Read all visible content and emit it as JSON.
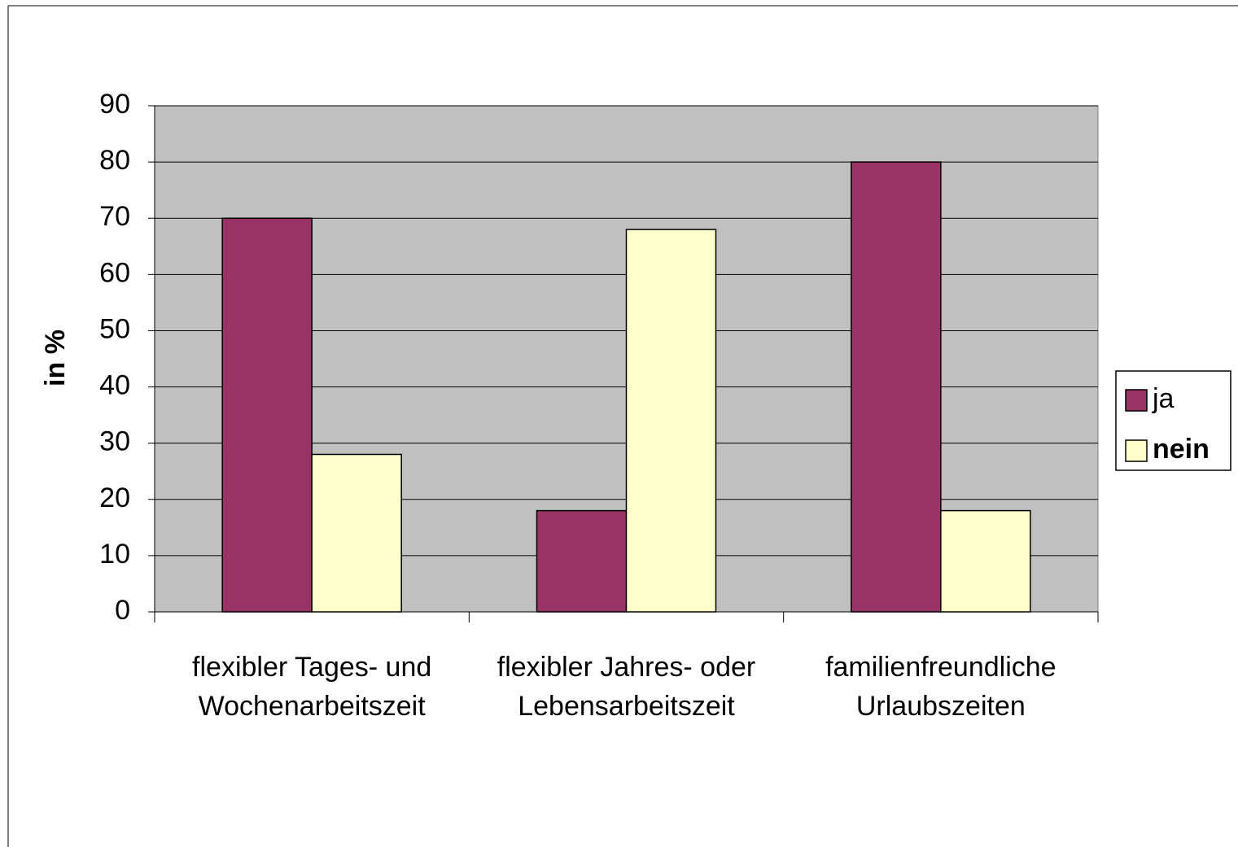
{
  "chart_data": {
    "type": "bar",
    "y_label": "in %",
    "categories": [
      "flexibler Tages- und Wochenarbeitszeit",
      "flexibler Jahres- oder Lebensarbeitszeit",
      "familienfreundliche Urlaubszeiten"
    ],
    "series": [
      {
        "name": "ja",
        "color": "#993366",
        "values": [
          70,
          18,
          80
        ]
      },
      {
        "name": "nein",
        "color": "#ffffcc",
        "values": [
          28,
          68,
          18
        ]
      }
    ],
    "ylim": [
      0,
      90
    ],
    "yticks": [
      0,
      10,
      20,
      30,
      40,
      50,
      60,
      70,
      80,
      90
    ],
    "grid": true,
    "legend": "right"
  }
}
